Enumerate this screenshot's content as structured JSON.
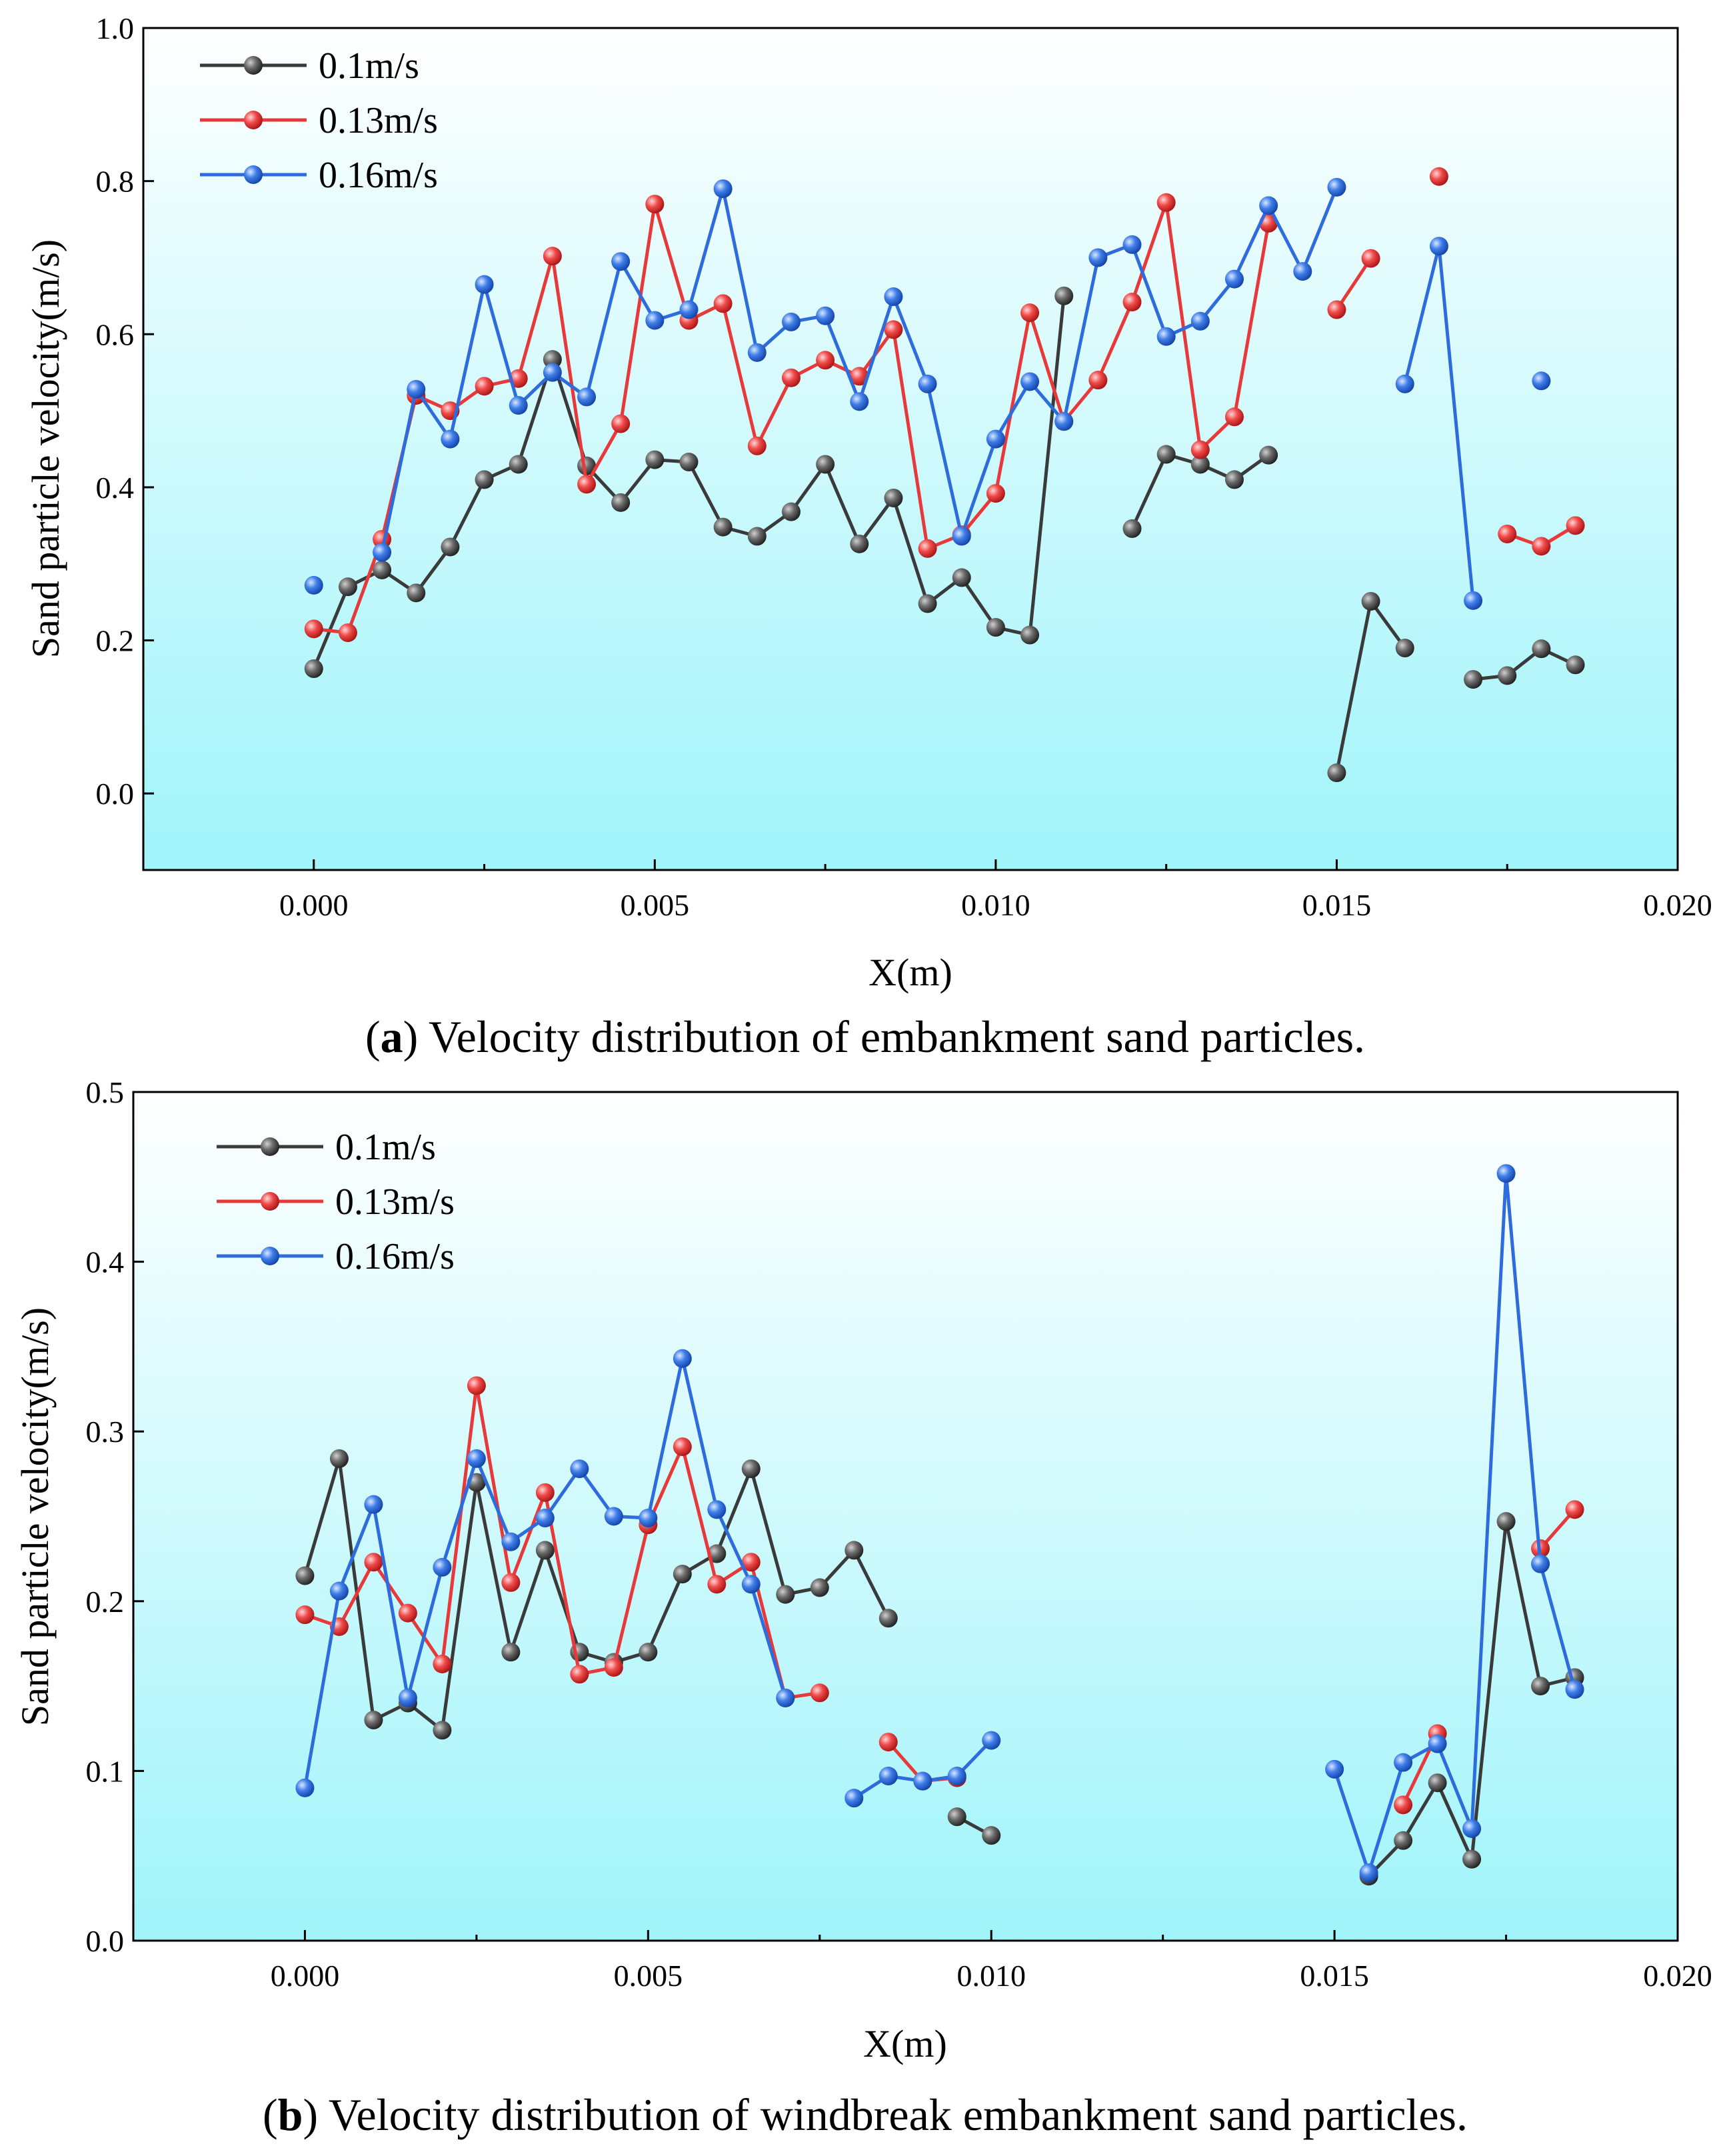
{
  "chart_data": [
    {
      "type": "line",
      "panel": "a",
      "caption": {
        "label": "a",
        "text": " Velocity distribution of embankment sand particles."
      },
      "xlabel": "X(m)",
      "ylabel": "Sand particle velocity(m/s)",
      "xlim": [
        -0.0025,
        0.02
      ],
      "ylim": [
        -0.1,
        1.0
      ],
      "xticks": [
        0.0,
        0.005,
        0.01,
        0.015,
        0.02
      ],
      "xtick_labels": [
        "0.000",
        "0.005",
        "0.010",
        "0.015",
        "0.020"
      ],
      "yticks": [
        0.0,
        0.2,
        0.4,
        0.6,
        0.8,
        1.0
      ],
      "ytick_labels": [
        "0.0",
        "0.2",
        "0.4",
        "0.6",
        "0.8",
        "1.0"
      ],
      "legend_position": "top-left",
      "series": [
        {
          "name": "0.1m/s",
          "color": "#3a3a3a",
          "points": [
            [
              0.0,
              0.163
            ],
            [
              0.0005,
              0.27
            ],
            [
              0.001,
              0.292
            ],
            [
              0.0015,
              0.262
            ],
            [
              0.002,
              0.322
            ],
            [
              0.0025,
              0.41
            ],
            [
              0.003,
              0.43
            ],
            [
              0.0035,
              0.567
            ],
            [
              0.004,
              0.428
            ],
            [
              0.0045,
              0.38
            ],
            [
              0.005,
              0.436
            ],
            [
              0.0055,
              0.433
            ],
            [
              0.006,
              0.348
            ],
            [
              0.0065,
              0.336
            ],
            [
              0.007,
              0.368
            ],
            [
              0.0075,
              0.43
            ],
            [
              0.008,
              0.326
            ],
            [
              0.0085,
              0.386
            ],
            [
              0.009,
              0.248
            ],
            [
              0.0095,
              0.282
            ],
            [
              0.01,
              0.217
            ],
            [
              0.0105,
              0.207
            ],
            [
              0.011,
              0.65
            ],
            null,
            [
              0.012,
              0.346
            ],
            [
              0.0125,
              0.443
            ],
            [
              0.013,
              0.43
            ],
            [
              0.0135,
              0.41
            ],
            [
              0.014,
              0.442
            ],
            null,
            [
              0.015,
              0.027
            ],
            [
              0.0155,
              0.251
            ],
            [
              0.016,
              0.19
            ],
            null,
            [
              0.017,
              0.149
            ],
            [
              0.0175,
              0.154
            ],
            [
              0.018,
              0.189
            ],
            [
              0.0185,
              0.168
            ]
          ]
        },
        {
          "name": "0.13m/s",
          "color": "#e8393a",
          "points": [
            [
              0.0,
              0.215
            ],
            [
              0.0005,
              0.21
            ],
            [
              0.001,
              0.332
            ],
            [
              0.0015,
              0.52
            ],
            [
              0.002,
              0.5
            ],
            [
              0.0025,
              0.532
            ],
            [
              0.003,
              0.542
            ],
            [
              0.0035,
              0.702
            ],
            [
              0.004,
              0.404
            ],
            [
              0.0045,
              0.483
            ],
            [
              0.005,
              0.77
            ],
            [
              0.0055,
              0.618
            ],
            [
              0.006,
              0.64
            ],
            [
              0.0065,
              0.454
            ],
            [
              0.007,
              0.543
            ],
            [
              0.0075,
              0.566
            ],
            [
              0.008,
              0.545
            ],
            [
              0.0085,
              0.606
            ],
            [
              0.009,
              0.32
            ],
            [
              0.0095,
              0.338
            ],
            [
              0.01,
              0.392
            ],
            [
              0.0105,
              0.628
            ],
            [
              0.011,
              0.486
            ],
            [
              0.0115,
              0.54
            ],
            [
              0.012,
              0.642
            ],
            [
              0.0125,
              0.772
            ],
            [
              0.013,
              0.449
            ],
            [
              0.0135,
              0.492
            ],
            [
              0.014,
              0.745
            ],
            null,
            [
              0.015,
              0.632
            ],
            [
              0.0155,
              0.699
            ],
            null,
            [
              0.0165,
              0.806
            ],
            null,
            [
              0.0175,
              0.339
            ],
            [
              0.018,
              0.323
            ],
            [
              0.0185,
              0.35
            ]
          ]
        },
        {
          "name": "0.16m/s",
          "color": "#2e6bdc",
          "points": [
            [
              0.0,
              0.272
            ],
            null,
            [
              0.001,
              0.315
            ],
            [
              0.0015,
              0.528
            ],
            [
              0.002,
              0.463
            ],
            [
              0.0025,
              0.665
            ],
            [
              0.003,
              0.507
            ],
            [
              0.0035,
              0.55
            ],
            [
              0.004,
              0.518
            ],
            [
              0.0045,
              0.695
            ],
            [
              0.005,
              0.618
            ],
            [
              0.0055,
              0.632
            ],
            [
              0.006,
              0.79
            ],
            [
              0.0065,
              0.576
            ],
            [
              0.007,
              0.616
            ],
            [
              0.0075,
              0.624
            ],
            [
              0.008,
              0.512
            ],
            [
              0.0085,
              0.649
            ],
            [
              0.009,
              0.535
            ],
            [
              0.0095,
              0.336
            ],
            [
              0.01,
              0.463
            ],
            [
              0.0105,
              0.538
            ],
            [
              0.011,
              0.486
            ],
            [
              0.0115,
              0.7
            ],
            [
              0.012,
              0.717
            ],
            [
              0.0125,
              0.597
            ],
            [
              0.013,
              0.617
            ],
            [
              0.0135,
              0.672
            ],
            [
              0.014,
              0.768
            ],
            [
              0.0145,
              0.682
            ],
            [
              0.015,
              0.792
            ],
            null,
            [
              0.016,
              0.535
            ],
            [
              0.0165,
              0.715
            ],
            [
              0.017,
              0.252
            ],
            null,
            [
              0.018,
              0.539
            ]
          ]
        }
      ]
    },
    {
      "type": "line",
      "panel": "b",
      "caption": {
        "label": "b",
        "text": " Velocity distribution of windbreak embankment sand particles."
      },
      "xlabel": "X(m)",
      "ylabel": "Sand particle velocity(m/s)",
      "xlim": [
        -0.0025,
        0.02
      ],
      "ylim": [
        0.0,
        0.5
      ],
      "xticks": [
        0.0,
        0.005,
        0.01,
        0.015,
        0.02
      ],
      "xtick_labels": [
        "0.000",
        "0.005",
        "0.010",
        "0.015",
        "0.020"
      ],
      "yticks": [
        0.0,
        0.1,
        0.2,
        0.3,
        0.4,
        0.5
      ],
      "ytick_labels": [
        "0.0",
        "0.1",
        "0.2",
        "0.3",
        "0.4",
        "0.5"
      ],
      "legend_position": "top-left",
      "series": [
        {
          "name": "0.1m/s",
          "color": "#3a3a3a",
          "points": [
            [
              0.0,
              0.215
            ],
            [
              0.0005,
              0.284
            ],
            [
              0.001,
              0.13
            ],
            [
              0.0015,
              0.14
            ],
            [
              0.002,
              0.124
            ],
            [
              0.0025,
              0.27
            ],
            [
              0.003,
              0.17
            ],
            [
              0.0035,
              0.23
            ],
            [
              0.004,
              0.17
            ],
            [
              0.0045,
              0.164
            ],
            [
              0.005,
              0.17
            ],
            [
              0.0055,
              0.216
            ],
            [
              0.006,
              0.228
            ],
            [
              0.0065,
              0.278
            ],
            [
              0.007,
              0.204
            ],
            [
              0.0075,
              0.208
            ],
            [
              0.008,
              0.23
            ],
            [
              0.0085,
              0.19
            ],
            null,
            [
              0.0095,
              0.073
            ],
            [
              0.01,
              0.062
            ],
            null,
            [
              0.0155,
              0.038
            ],
            [
              0.016,
              0.059
            ],
            [
              0.0165,
              0.093
            ],
            [
              0.017,
              0.048
            ],
            [
              0.0175,
              0.247
            ],
            [
              0.018,
              0.15
            ],
            [
              0.0185,
              0.155
            ]
          ]
        },
        {
          "name": "0.13m/s",
          "color": "#e8393a",
          "points": [
            [
              0.0,
              0.192
            ],
            [
              0.0005,
              0.185
            ],
            [
              0.001,
              0.223
            ],
            [
              0.0015,
              0.193
            ],
            [
              0.002,
              0.163
            ],
            [
              0.0025,
              0.327
            ],
            [
              0.003,
              0.211
            ],
            [
              0.0035,
              0.264
            ],
            [
              0.004,
              0.157
            ],
            [
              0.0045,
              0.161
            ],
            [
              0.005,
              0.245
            ],
            [
              0.0055,
              0.291
            ],
            [
              0.006,
              0.21
            ],
            [
              0.0065,
              0.223
            ],
            [
              0.007,
              0.143
            ],
            [
              0.0075,
              0.146
            ],
            null,
            [
              0.0085,
              0.117
            ],
            [
              0.009,
              0.094
            ],
            [
              0.0095,
              0.096
            ],
            null,
            [
              0.016,
              0.08
            ],
            [
              0.0165,
              0.122
            ],
            null,
            [
              0.018,
              0.231
            ],
            [
              0.0185,
              0.254
            ]
          ]
        },
        {
          "name": "0.16m/s",
          "color": "#2e6bdc",
          "points": [
            [
              0.0,
              0.09
            ],
            [
              0.0005,
              0.206
            ],
            [
              0.001,
              0.257
            ],
            [
              0.0015,
              0.143
            ],
            [
              0.002,
              0.22
            ],
            [
              0.0025,
              0.284
            ],
            [
              0.003,
              0.235
            ],
            [
              0.0035,
              0.249
            ],
            [
              0.004,
              0.278
            ],
            [
              0.0045,
              0.25
            ],
            [
              0.005,
              0.249
            ],
            [
              0.0055,
              0.343
            ],
            [
              0.006,
              0.254
            ],
            [
              0.0065,
              0.21
            ],
            [
              0.007,
              0.143
            ],
            null,
            [
              0.008,
              0.084
            ],
            [
              0.0085,
              0.097
            ],
            [
              0.009,
              0.094
            ],
            [
              0.0095,
              0.097
            ],
            [
              0.01,
              0.118
            ],
            null,
            [
              0.015,
              0.101
            ],
            [
              0.0155,
              0.04
            ],
            [
              0.016,
              0.105
            ],
            [
              0.0165,
              0.116
            ],
            [
              0.017,
              0.066
            ],
            [
              0.0175,
              0.452
            ],
            [
              0.018,
              0.222
            ],
            [
              0.0185,
              0.148
            ]
          ]
        }
      ]
    }
  ]
}
